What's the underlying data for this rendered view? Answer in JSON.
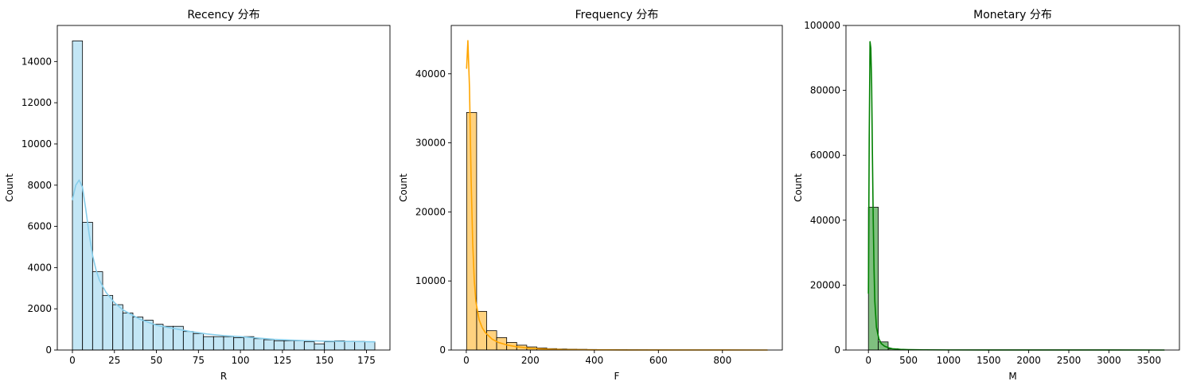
{
  "chart_data": [
    {
      "type": "bar",
      "title": "Recency 分布",
      "xlabel": "R",
      "ylabel": "Count",
      "xlim": [
        -9,
        189
      ],
      "ylim": [
        0,
        15750
      ],
      "xticks": [
        0,
        25,
        50,
        75,
        100,
        125,
        150,
        175
      ],
      "yticks": [
        0,
        2000,
        4000,
        6000,
        8000,
        10000,
        12000,
        14000
      ],
      "bin_start": 0,
      "bin_width": 6,
      "values": [
        15000,
        6200,
        3800,
        2650,
        2200,
        1800,
        1600,
        1450,
        1250,
        1150,
        1150,
        900,
        800,
        650,
        650,
        650,
        600,
        650,
        550,
        500,
        450,
        450,
        450,
        400,
        300,
        400,
        450,
        430,
        420,
        410
      ],
      "kde": {
        "x": [
          0,
          2,
          4,
          6,
          8,
          10,
          12,
          14,
          16,
          20,
          25,
          30,
          40,
          50,
          60,
          70,
          80,
          90,
          100,
          110,
          120,
          130,
          140,
          150,
          160,
          170,
          180
        ],
        "y": [
          7300,
          8000,
          8250,
          7900,
          6800,
          5600,
          4600,
          3900,
          3400,
          2800,
          2300,
          1950,
          1500,
          1200,
          1050,
          900,
          780,
          700,
          650,
          580,
          520,
          480,
          450,
          430,
          420,
          410,
          400
        ]
      },
      "color": "#87ceeb",
      "bar_alpha": 0.5
    },
    {
      "type": "bar",
      "title": "Frequency 分布",
      "xlabel": "F",
      "ylabel": "Count",
      "xlim": [
        -47,
        987
      ],
      "ylim": [
        0,
        47000
      ],
      "xticks": [
        0,
        200,
        400,
        600,
        800
      ],
      "yticks": [
        0,
        10000,
        20000,
        30000,
        40000
      ],
      "bin_start": 1,
      "bin_width": 31.3,
      "values": [
        34400,
        5600,
        2800,
        1800,
        1100,
        700,
        450,
        300,
        200,
        150,
        120,
        100,
        80,
        60,
        50,
        40,
        30,
        25,
        20,
        15,
        12,
        10,
        8,
        6,
        5,
        4,
        3,
        2,
        2,
        1
      ],
      "kde": {
        "x": [
          1,
          5,
          10,
          15,
          20,
          25,
          30,
          40,
          50,
          60,
          80,
          100,
          130,
          160,
          200,
          250,
          300,
          400,
          500,
          600,
          700,
          800,
          940
        ],
        "y": [
          40800,
          44800,
          38000,
          25000,
          15500,
          10000,
          7000,
          4400,
          3200,
          2500,
          1600,
          1100,
          700,
          450,
          250,
          130,
          60,
          25,
          10,
          5,
          3,
          2,
          1
        ]
      },
      "color": "#ffa500",
      "bar_alpha": 0.5
    },
    {
      "type": "bar",
      "title": "Monetary 分布",
      "xlabel": "M",
      "ylabel": "Count",
      "xlim": [
        -280,
        3880
      ],
      "ylim": [
        0,
        100000
      ],
      "xticks": [
        0,
        500,
        1000,
        1500,
        2000,
        2500,
        3000,
        3500
      ],
      "yticks": [
        0,
        20000,
        40000,
        60000,
        80000,
        100000
      ],
      "bin_start": 0,
      "bin_width": 123,
      "values": [
        44000,
        2500,
        400,
        150,
        80,
        50,
        30,
        20,
        15,
        10,
        8,
        6,
        5,
        4,
        3,
        3,
        2,
        2,
        2,
        1,
        1,
        1,
        1,
        1,
        1,
        1,
        1,
        1,
        1,
        1
      ],
      "kde": {
        "x": [
          0,
          10,
          20,
          30,
          40,
          50,
          60,
          70,
          80,
          100,
          130,
          160,
          200,
          250,
          300,
          400,
          500,
          700,
          1000,
          1500,
          2000,
          2500,
          3000,
          3690
        ],
        "y": [
          17500,
          65000,
          95000,
          93000,
          82000,
          60000,
          40000,
          25000,
          15000,
          7000,
          3500,
          2000,
          1200,
          700,
          400,
          200,
          120,
          60,
          30,
          15,
          10,
          8,
          5,
          3
        ]
      },
      "color": "#008000",
      "bar_alpha": 0.5
    }
  ]
}
